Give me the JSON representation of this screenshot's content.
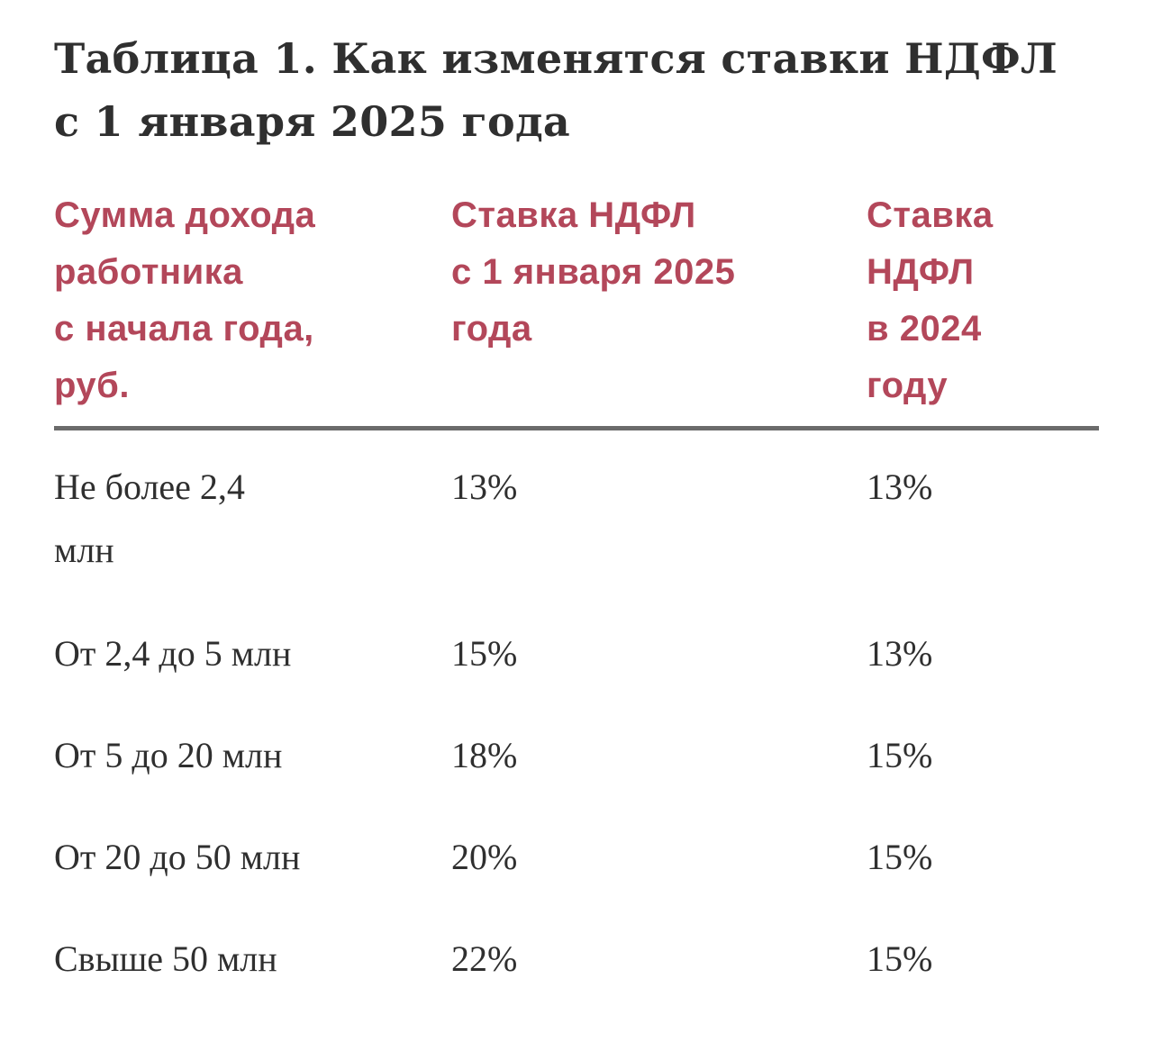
{
  "title": {
    "line1": "Таблица 1. Как изменятся ставки НДФЛ",
    "line2": "с 1 января 2025 года"
  },
  "table": {
    "headers": [
      {
        "lines": [
          "Сумма дохода",
          "работника",
          "с начала года,",
          "руб."
        ]
      },
      {
        "lines": [
          "Ставка НДФЛ",
          "с 1 января 2025",
          "года"
        ]
      },
      {
        "lines": [
          "Ставка",
          "НДФЛ",
          "в 2024",
          "году"
        ]
      }
    ],
    "rows": [
      {
        "income": [
          "Не более 2,4",
          "млн"
        ],
        "rate_2025": "13%",
        "rate_2024": "13%"
      },
      {
        "income": [
          "От 2,4 до 5 млн"
        ],
        "rate_2025": "15%",
        "rate_2024": "13%"
      },
      {
        "income": [
          "От 5 до 20 млн"
        ],
        "rate_2025": "18%",
        "rate_2024": "15%"
      },
      {
        "income": [
          "От 20 до 50 млн"
        ],
        "rate_2025": "20%",
        "rate_2024": "15%"
      },
      {
        "income": [
          "Свыше 50 млн"
        ],
        "rate_2025": "22%",
        "rate_2024": "15%"
      }
    ]
  },
  "colors": {
    "header_text": "#b3475a",
    "body_text": "#2f2f2f",
    "rule": "#6b6b6b"
  }
}
